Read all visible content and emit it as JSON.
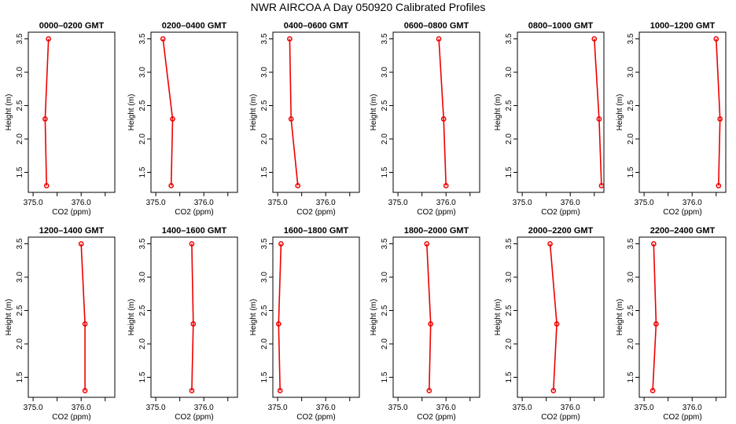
{
  "title": "NWR AIRCOA A  Day 050920  Calibrated Profiles",
  "colors": {
    "series": "#ee0000",
    "axis": "#000000",
    "background": "#ffffff"
  },
  "chart_data": [
    {
      "type": "line",
      "title": "0000–0200 GMT",
      "xlabel": "CO2 (ppm)",
      "ylabel": "Height (m)",
      "xlim": [
        374.9,
        376.7
      ],
      "ylim": [
        1.2,
        3.6
      ],
      "xticks": [
        "375.0",
        "376.0"
      ],
      "yticks": [
        "1.5",
        "2.0",
        "2.5",
        "3.0",
        "3.5"
      ],
      "x": [
        375.28,
        375.25,
        375.32
      ],
      "y": [
        1.3,
        2.3,
        3.5
      ]
    },
    {
      "type": "line",
      "title": "0200–0400 GMT",
      "xlabel": "CO2 (ppm)",
      "ylabel": "Height (m)",
      "xlim": [
        374.9,
        376.7
      ],
      "ylim": [
        1.2,
        3.6
      ],
      "xticks": [
        "375.0",
        "376.0"
      ],
      "yticks": [
        "1.5",
        "2.0",
        "2.5",
        "3.0",
        "3.5"
      ],
      "x": [
        375.32,
        375.35,
        375.15
      ],
      "y": [
        1.3,
        2.3,
        3.5
      ]
    },
    {
      "type": "line",
      "title": "0400–0600 GMT",
      "xlabel": "CO2 (ppm)",
      "ylabel": "Height (m)",
      "xlim": [
        374.9,
        376.7
      ],
      "ylim": [
        1.2,
        3.6
      ],
      "xticks": [
        "375.0",
        "376.0"
      ],
      "yticks": [
        "1.5",
        "2.0",
        "2.5",
        "3.0",
        "3.5"
      ],
      "x": [
        375.42,
        375.28,
        375.25
      ],
      "y": [
        1.3,
        2.3,
        3.5
      ]
    },
    {
      "type": "line",
      "title": "0600–0800 GMT",
      "xlabel": "CO2 (ppm)",
      "ylabel": "Height (m)",
      "xlim": [
        374.9,
        376.7
      ],
      "ylim": [
        1.2,
        3.6
      ],
      "xticks": [
        "375.0",
        "376.0"
      ],
      "yticks": [
        "1.5",
        "2.0",
        "2.5",
        "3.0",
        "3.5"
      ],
      "x": [
        376.0,
        375.95,
        375.85
      ],
      "y": [
        1.3,
        2.3,
        3.5
      ]
    },
    {
      "type": "line",
      "title": "0800–1000 GMT",
      "xlabel": "CO2 (ppm)",
      "ylabel": "Height (m)",
      "xlim": [
        374.9,
        376.7
      ],
      "ylim": [
        1.2,
        3.6
      ],
      "xticks": [
        "375.0",
        "376.0"
      ],
      "yticks": [
        "1.5",
        "2.0",
        "2.5",
        "3.0",
        "3.5"
      ],
      "x": [
        376.65,
        376.6,
        376.5
      ],
      "y": [
        1.3,
        2.3,
        3.5
      ]
    },
    {
      "type": "line",
      "title": "1000–1200 GMT",
      "xlabel": "CO2 (ppm)",
      "ylabel": "Height (m)",
      "xlim": [
        374.9,
        376.7
      ],
      "ylim": [
        1.2,
        3.6
      ],
      "xticks": [
        "375.0",
        "376.0"
      ],
      "yticks": [
        "1.5",
        "2.0",
        "2.5",
        "3.0",
        "3.5"
      ],
      "x": [
        376.55,
        376.58,
        376.5
      ],
      "y": [
        1.3,
        2.3,
        3.5
      ]
    },
    {
      "type": "line",
      "title": "1200–1400 GMT",
      "xlabel": "CO2 (ppm)",
      "ylabel": "Height (m)",
      "xlim": [
        374.9,
        376.7
      ],
      "ylim": [
        1.2,
        3.6
      ],
      "xticks": [
        "375.0",
        "376.0"
      ],
      "yticks": [
        "1.5",
        "2.0",
        "2.5",
        "3.0",
        "3.5"
      ],
      "x": [
        376.08,
        376.08,
        376.0
      ],
      "y": [
        1.3,
        2.3,
        3.5
      ]
    },
    {
      "type": "line",
      "title": "1400–1600 GMT",
      "xlabel": "CO2 (ppm)",
      "ylabel": "Height (m)",
      "xlim": [
        374.9,
        376.7
      ],
      "ylim": [
        1.2,
        3.6
      ],
      "xticks": [
        "375.0",
        "376.0"
      ],
      "yticks": [
        "1.5",
        "2.0",
        "2.5",
        "3.0",
        "3.5"
      ],
      "x": [
        375.75,
        375.78,
        375.75
      ],
      "y": [
        1.3,
        2.3,
        3.5
      ]
    },
    {
      "type": "line",
      "title": "1600–1800 GMT",
      "xlabel": "CO2 (ppm)",
      "ylabel": "Height (m)",
      "xlim": [
        374.9,
        376.7
      ],
      "ylim": [
        1.2,
        3.6
      ],
      "xticks": [
        "375.0",
        "376.0"
      ],
      "yticks": [
        "1.5",
        "2.0",
        "2.5",
        "3.0",
        "3.5"
      ],
      "x": [
        375.05,
        375.02,
        375.07
      ],
      "y": [
        1.3,
        2.3,
        3.5
      ]
    },
    {
      "type": "line",
      "title": "1800–2000 GMT",
      "xlabel": "CO2 (ppm)",
      "ylabel": "Height (m)",
      "xlim": [
        374.9,
        376.7
      ],
      "ylim": [
        1.2,
        3.6
      ],
      "xticks": [
        "375.0",
        "376.0"
      ],
      "yticks": [
        "1.5",
        "2.0",
        "2.5",
        "3.0",
        "3.5"
      ],
      "x": [
        375.65,
        375.68,
        375.6
      ],
      "y": [
        1.3,
        2.3,
        3.5
      ]
    },
    {
      "type": "line",
      "title": "2000–2200 GMT",
      "xlabel": "CO2 (ppm)",
      "ylabel": "Height (m)",
      "xlim": [
        374.9,
        376.7
      ],
      "ylim": [
        1.2,
        3.6
      ],
      "xticks": [
        "375.0",
        "376.0"
      ],
      "yticks": [
        "1.5",
        "2.0",
        "2.5",
        "3.0",
        "3.5"
      ],
      "x": [
        375.65,
        375.72,
        375.58
      ],
      "y": [
        1.3,
        2.3,
        3.5
      ]
    },
    {
      "type": "line",
      "title": "2200–2400 GMT",
      "xlabel": "CO2 (ppm)",
      "ylabel": "Height (m)",
      "xlim": [
        374.9,
        376.7
      ],
      "ylim": [
        1.2,
        3.6
      ],
      "xticks": [
        "375.0",
        "376.0"
      ],
      "yticks": [
        "1.5",
        "2.0",
        "2.5",
        "3.0",
        "3.5"
      ],
      "x": [
        375.18,
        375.25,
        375.2
      ],
      "y": [
        1.3,
        2.3,
        3.5
      ]
    }
  ]
}
